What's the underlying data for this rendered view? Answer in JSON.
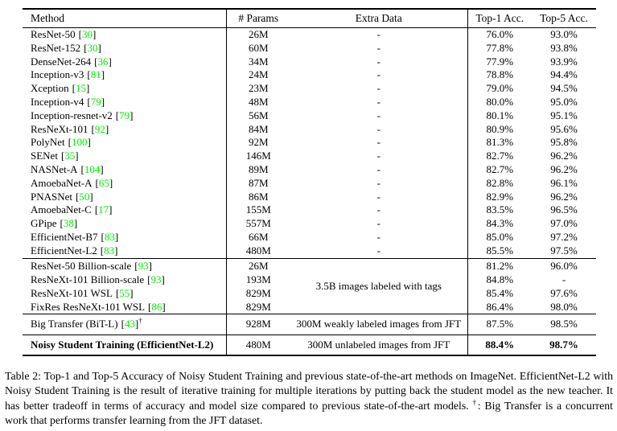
{
  "table": {
    "header": {
      "method": "Method",
      "params": "# Params",
      "extra": "Extra Data",
      "top1": "Top-1 Acc.",
      "top5": "Top-5 Acc."
    },
    "cite_open": "[",
    "cite_close": "]",
    "dagger_symbol": "†",
    "sections": [
      {
        "rows": [
          {
            "method": "ResNet-50",
            "cite": "30",
            "params": "26M",
            "extra": "-",
            "top1": "76.0%",
            "top5": "93.0%"
          },
          {
            "method": "ResNet-152",
            "cite": "30",
            "params": "60M",
            "extra": "-",
            "top1": "77.8%",
            "top5": "93.8%"
          },
          {
            "method": "DenseNet-264",
            "cite": "36",
            "params": "34M",
            "extra": "-",
            "top1": "77.9%",
            "top5": "93.9%"
          },
          {
            "method": "Inception-v3",
            "cite": "81",
            "params": "24M",
            "extra": "-",
            "top1": "78.8%",
            "top5": "94.4%"
          },
          {
            "method": "Xception",
            "cite": "15",
            "params": "23M",
            "extra": "-",
            "top1": "79.0%",
            "top5": "94.5%"
          },
          {
            "method": "Inception-v4",
            "cite": "79",
            "params": "48M",
            "extra": "-",
            "top1": "80.0%",
            "top5": "95.0%"
          },
          {
            "method": "Inception-resnet-v2",
            "cite": "79",
            "params": "56M",
            "extra": "-",
            "top1": "80.1%",
            "top5": "95.1%"
          },
          {
            "method": "ResNeXt-101",
            "cite": "92",
            "params": "84M",
            "extra": "-",
            "top1": "80.9%",
            "top5": "95.6%"
          },
          {
            "method": "PolyNet",
            "cite": "100",
            "params": "92M",
            "extra": "-",
            "top1": "81.3%",
            "top5": "95.8%"
          },
          {
            "method": "SENet",
            "cite": "35",
            "params": "146M",
            "extra": "-",
            "top1": "82.7%",
            "top5": "96.2%"
          },
          {
            "method": "NASNet-A",
            "cite": "104",
            "params": "89M",
            "extra": "-",
            "top1": "82.7%",
            "top5": "96.2%"
          },
          {
            "method": "AmoebaNet-A",
            "cite": "65",
            "params": "87M",
            "extra": "-",
            "top1": "82.8%",
            "top5": "96.1%"
          },
          {
            "method": "PNASNet",
            "cite": "50",
            "params": "86M",
            "extra": "-",
            "top1": "82.9%",
            "top5": "96.2%"
          },
          {
            "method": "AmoebaNet-C",
            "cite": "17",
            "params": "155M",
            "extra": "-",
            "top1": "83.5%",
            "top5": "96.5%"
          },
          {
            "method": "GPipe",
            "cite": "38",
            "params": "557M",
            "extra": "-",
            "top1": "84.3%",
            "top5": "97.0%"
          },
          {
            "method": "EfficientNet-B7",
            "cite": "83",
            "params": "66M",
            "extra": "-",
            "top1": "85.0%",
            "top5": "97.2%"
          },
          {
            "method": "EfficientNet-L2",
            "cite": "83",
            "params": "480M",
            "extra": "-",
            "top1": "85.5%",
            "top5": "97.5%"
          }
        ]
      },
      {
        "extra_merged": "3.5B images labeled with tags",
        "rows": [
          {
            "method": "ResNet-50 Billion-scale",
            "cite": "93",
            "params": "26M",
            "top1": "81.2%",
            "top5": "96.0%"
          },
          {
            "method": "ResNeXt-101 Billion-scale",
            "cite": "93",
            "params": "193M",
            "top1": "84.8%",
            "top5": "-"
          },
          {
            "method": "ResNeXt-101 WSL",
            "cite": "55",
            "params": "829M",
            "top1": "85.4%",
            "top5": "97.6%"
          },
          {
            "method": "FixRes ResNeXt-101 WSL",
            "cite": "86",
            "params": "829M",
            "top1": "86.4%",
            "top5": "98.0%"
          }
        ]
      },
      {
        "rows": [
          {
            "method": "Big Transfer (BiT-L)",
            "cite": "43",
            "dagger": true,
            "params": "928M",
            "extra": "300M weakly labeled images from JFT",
            "top1": "87.5%",
            "top5": "98.5%"
          }
        ]
      },
      {
        "rows": [
          {
            "method": "Noisy Student Training (EfficientNet-L2)",
            "bold": true,
            "params": "480M",
            "extra": "300M unlabeled images from JFT",
            "top1": "88.4%",
            "top5": "98.7%"
          }
        ]
      }
    ]
  },
  "caption": {
    "text_before_dagger": "Table 2:  Top-1 and Top-5 Accuracy of Noisy Student Training and previous state-of-the-art methods on ImageNet. EfficientNet-L2 with Noisy Student Training is the result of iterative training for multiple iterations by putting back the student model as the new teacher. It has better tradeoff in terms of accuracy and model size compared to previous state-of-the-art models. ",
    "dagger": "†",
    "text_after_dagger": ": Big Transfer is a concurrent work that performs transfer learning from the JFT dataset."
  },
  "colors": {
    "citation_green": "#00ee00",
    "text": "#000000",
    "background": "#ffffff"
  }
}
